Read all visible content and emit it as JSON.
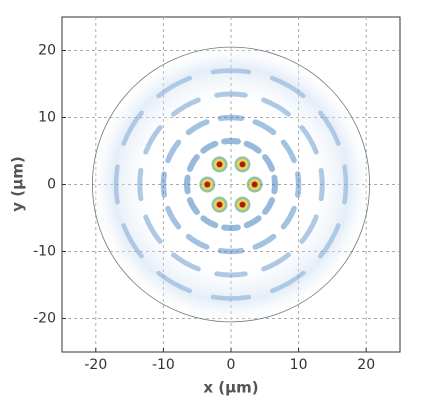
{
  "chart_data": {
    "type": "mode-field",
    "xlabel": "x (µm)",
    "ylabel": "y (µm)",
    "xlim": [
      -25,
      25
    ],
    "ylim": [
      -25,
      25
    ],
    "xticks": [
      -20,
      -10,
      0,
      10,
      20
    ],
    "yticks": [
      -20,
      -10,
      0,
      10,
      20
    ],
    "grid": true,
    "boundary_radius": 20.5,
    "peaks": {
      "x": [
        -3.5,
        3.5,
        -1.7,
        1.7,
        -1.7,
        1.7
      ],
      "y": [
        0,
        0,
        3,
        3,
        -3,
        -3
      ]
    },
    "rings": [
      6.5,
      10,
      13.5,
      17
    ],
    "azimuthal_lobes": 12
  }
}
